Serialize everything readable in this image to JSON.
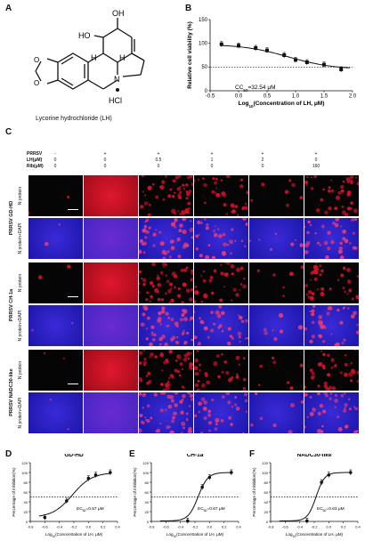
{
  "panels": {
    "A": {
      "letter": "A",
      "caption": "Lycorine hydrochloride (LH)",
      "atoms": {
        "oh": "OH",
        "ho": "HO",
        "h1": "H",
        "h2": "H",
        "n": "N",
        "hcl": "HCl"
      }
    },
    "B": {
      "letter": "B"
    },
    "C": {
      "letter": "C"
    },
    "D": {
      "letter": "D"
    },
    "E": {
      "letter": "E"
    },
    "F": {
      "letter": "F"
    }
  },
  "table_c": {
    "row_labels": [
      "PRRSV",
      "LH(μM)",
      "Rib(μM)"
    ],
    "columns": [
      {
        "prrsv": "-",
        "lh": "0",
        "rib": "0"
      },
      {
        "prrsv": "+",
        "lh": "0",
        "rib": "0"
      },
      {
        "prrsv": "+",
        "lh": "0.5",
        "rib": "0"
      },
      {
        "prrsv": "+",
        "lh": "1",
        "rib": "0"
      },
      {
        "prrsv": "+",
        "lh": "2",
        "rib": "0"
      },
      {
        "prrsv": "+",
        "lh": "0",
        "rib": "160"
      }
    ]
  },
  "image_groups": [
    {
      "strain": "PRRSV GD-HD",
      "rows": [
        "N protein",
        "N protein+DAPI"
      ]
    },
    {
      "strain": "PRRSV CH-1a",
      "rows": [
        "N protein",
        "N protein+DAPI"
      ]
    },
    {
      "strain": "PRRSV NADC30-like",
      "rows": [
        "N protein",
        "N protein+DAPI"
      ]
    }
  ],
  "red_levels": [
    0.02,
    0.95,
    0.55,
    0.35,
    0.08,
    0.4
  ],
  "colors": {
    "red": "#d4102a",
    "blue": "#2a22c8",
    "black": "#050505"
  },
  "chart_data": [
    {
      "type": "scatter",
      "panel": "B",
      "x": [
        -0.3,
        0.0,
        0.3,
        0.5,
        0.8,
        1.0,
        1.2,
        1.5,
        1.8
      ],
      "y": [
        98,
        95,
        90,
        85,
        75,
        65,
        60,
        55,
        45
      ],
      "fit": "dose-response",
      "reference_line_y": 50,
      "annotation": "CC50=32.54 μM",
      "xlabel": "Log10(Concentration of LH, μM)",
      "ylabel": "Relative cell viability (%)",
      "xticks": [
        "-0.5",
        "0.0",
        "0.5",
        "1.0",
        "1.5",
        "2.0"
      ],
      "yticks": [
        "0",
        "50",
        "100",
        "150"
      ],
      "xlim": [
        -0.5,
        2.0
      ],
      "ylim": [
        0,
        150
      ]
    },
    {
      "type": "scatter",
      "panel": "D",
      "title": "GD-HD",
      "x": [
        -0.6,
        -0.3,
        0.0,
        0.1,
        0.3
      ],
      "y": [
        8,
        42,
        88,
        95,
        100
      ],
      "fit": "dose-response",
      "reference_line_y": 50,
      "annotation": "EC50=0.57 μM",
      "xlabel": "Log10(Concentration of LH, μM)",
      "ylabel": "Percentage of inhibition(%)",
      "xticks": [
        "-0.8",
        "-0.6",
        "-0.4",
        "-0.2",
        "0.0",
        "0.2",
        "0.4"
      ],
      "yticks": [
        "0",
        "20",
        "40",
        "60",
        "80",
        "100",
        "120"
      ],
      "xlim": [
        -0.8,
        0.4
      ],
      "ylim": [
        0,
        120
      ]
    },
    {
      "type": "scatter",
      "panel": "E",
      "title": "CH-1a",
      "x": [
        -0.3,
        -0.1,
        0.0,
        0.3
      ],
      "y": [
        1,
        70,
        90,
        100
      ],
      "fit": "dose-response",
      "reference_line_y": 50,
      "annotation": "EC50=0.67 μM",
      "xlabel": "Log10(Concentration of LH, μM)",
      "ylabel": "Percentage of inhibition(%)",
      "xticks": [
        "-0.8",
        "-0.6",
        "-0.4",
        "-0.2",
        "0.0",
        "0.2",
        "0.4"
      ],
      "yticks": [
        "0",
        "20",
        "40",
        "60",
        "80",
        "100",
        "120"
      ],
      "xlim": [
        -0.8,
        0.4
      ],
      "ylim": [
        0,
        120
      ]
    },
    {
      "type": "scatter",
      "panel": "F",
      "title": "NADC30-like",
      "x": [
        -0.3,
        -0.1,
        0.0,
        0.3
      ],
      "y": [
        1,
        80,
        95,
        100
      ],
      "fit": "dose-response",
      "reference_line_y": 50,
      "annotation": "EC50=0.63 μM",
      "xlabel": "Log10(Concentration of LH, μM)",
      "ylabel": "Percentage of inhibition(%)",
      "xticks": [
        "-0.8",
        "-0.6",
        "-0.4",
        "-0.2",
        "0.0",
        "0.2",
        "0.4"
      ],
      "yticks": [
        "0",
        "20",
        "40",
        "60",
        "80",
        "100",
        "120"
      ],
      "xlim": [
        -0.8,
        0.4
      ],
      "ylim": [
        0,
        120
      ]
    }
  ]
}
